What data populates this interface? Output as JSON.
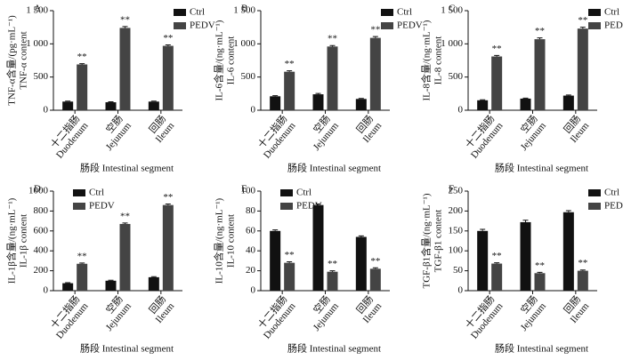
{
  "chart_data": [
    {
      "type": "bar",
      "title": "A",
      "ylabel": [
        "TNF-α含量/(pg·mL⁻¹)",
        "TNF-α content"
      ],
      "xlabel": "肠段 Intestinal segment",
      "categories": [
        [
          "十二指肠",
          "Duodenum"
        ],
        [
          "空肠",
          "Jejunum"
        ],
        [
          "回肠",
          "Ileum"
        ]
      ],
      "series": [
        {
          "name": "Ctrl",
          "color": "#111111",
          "values": [
            130,
            120,
            130
          ],
          "errors": [
            8,
            8,
            8
          ]
        },
        {
          "name": "PEDV",
          "color": "#444444",
          "values": [
            690,
            1240,
            970
          ],
          "errors": [
            12,
            20,
            15
          ],
          "significance": [
            "**",
            "**",
            "**"
          ]
        }
      ],
      "ylim": [
        0,
        1500
      ],
      "yticks": [
        0,
        500,
        {
          "value": 1000,
          "label": "1 000"
        },
        {
          "value": 1500,
          "label": "1 500"
        }
      ],
      "legend": "upper right"
    },
    {
      "type": "bar",
      "title": "B",
      "ylabel": [
        "IL-6含量/(ng·mL⁻¹)",
        "IL-6 content"
      ],
      "xlabel": "肠段 Intestinal segment",
      "categories": [
        [
          "十二指肠",
          "Duodenum"
        ],
        [
          "空肠",
          "Jejunum"
        ],
        [
          "回肠",
          "Ileum"
        ]
      ],
      "series": [
        {
          "name": "Ctrl",
          "color": "#111111",
          "values": [
            210,
            240,
            170
          ],
          "errors": [
            10,
            12,
            8
          ]
        },
        {
          "name": "PEDV",
          "color": "#444444",
          "values": [
            580,
            960,
            1090
          ],
          "errors": [
            15,
            15,
            20
          ],
          "significance": [
            "**",
            "**",
            "**"
          ]
        }
      ],
      "ylim": [
        0,
        1500
      ],
      "yticks": [
        0,
        500,
        {
          "value": 1000,
          "label": "1 000"
        },
        {
          "value": 1500,
          "label": "1 500"
        }
      ],
      "legend": "upper right"
    },
    {
      "type": "bar",
      "title": "C",
      "ylabel": [
        "IL-8含量/(ng·mL⁻¹)",
        "IL-8 content"
      ],
      "xlabel": "肠段 Intestinal segment",
      "categories": [
        [
          "十二指肠",
          "Duodenum"
        ],
        [
          "空肠",
          "Jejunum"
        ],
        [
          "回肠",
          "Ileum"
        ]
      ],
      "series": [
        {
          "name": "Ctrl",
          "color": "#111111",
          "values": [
            150,
            175,
            220
          ],
          "errors": [
            8,
            8,
            10
          ]
        },
        {
          "name": "PEDV",
          "color": "#444444",
          "values": [
            810,
            1070,
            1230
          ],
          "errors": [
            15,
            20,
            20
          ],
          "significance": [
            "**",
            "**",
            "**"
          ]
        }
      ],
      "ylim": [
        0,
        1500
      ],
      "yticks": [
        0,
        500,
        {
          "value": 1000,
          "label": "1 000"
        },
        {
          "value": 1500,
          "label": "1 500"
        }
      ],
      "legend": "upper right"
    },
    {
      "type": "bar",
      "title": "D",
      "ylabel": [
        "IL-1β含量/(ng·mL⁻¹)",
        "IL-1β content"
      ],
      "xlabel": "肠段 Intestinal segment",
      "categories": [
        [
          "十二指肠",
          "Duodenum"
        ],
        [
          "空肠",
          "Jejunum"
        ],
        [
          "回肠",
          "Ileum"
        ]
      ],
      "series": [
        {
          "name": "Ctrl",
          "color": "#111111",
          "values": [
            75,
            100,
            135
          ],
          "errors": [
            5,
            5,
            6
          ]
        },
        {
          "name": "PEDV",
          "color": "#444444",
          "values": [
            270,
            670,
            860
          ],
          "errors": [
            8,
            10,
            10
          ],
          "significance": [
            "**",
            "**",
            "**"
          ]
        }
      ],
      "ylim": [
        0,
        1000
      ],
      "yticks": [
        0,
        200,
        400,
        600,
        800,
        1000
      ],
      "legend": "upper left"
    },
    {
      "type": "bar",
      "title": "E",
      "ylabel": [
        "IL-10含量/(ng·mL⁻¹)",
        "IL-10 content"
      ],
      "xlabel": "肠段 Intestinal segment",
      "categories": [
        [
          "十二指肠",
          "Duodenum"
        ],
        [
          "空肠",
          "Jejunum"
        ],
        [
          "回肠",
          "Ileum"
        ]
      ],
      "series": [
        {
          "name": "Ctrl",
          "color": "#111111",
          "values": [
            60,
            86,
            54
          ],
          "errors": [
            1,
            1,
            1
          ]
        },
        {
          "name": "PEDV",
          "color": "#444444",
          "values": [
            28,
            19,
            22
          ],
          "errors": [
            1,
            1,
            1
          ],
          "significance": [
            "**",
            "**",
            "**"
          ]
        }
      ],
      "ylim": [
        0,
        100
      ],
      "yticks": [
        0,
        20,
        40,
        60,
        80,
        100
      ],
      "legend": "upper left"
    },
    {
      "type": "bar",
      "title": "F",
      "ylabel": [
        "TGF-β1含量/(ng·mL⁻¹)",
        "TGF-β1 content"
      ],
      "xlabel": "肠段 Intestinal segment",
      "categories": [
        [
          "十二指肠",
          "Duodenum"
        ],
        [
          "空肠",
          "Jejunum"
        ],
        [
          "回肠",
          "Ileum"
        ]
      ],
      "series": [
        {
          "name": "Ctrl",
          "color": "#111111",
          "values": [
            150,
            172,
            197
          ],
          "errors": [
            4,
            5,
            4
          ]
        },
        {
          "name": "PEDV",
          "color": "#444444",
          "values": [
            68,
            44,
            50
          ],
          "errors": [
            2,
            2,
            2
          ],
          "significance": [
            "**",
            "**",
            "**"
          ]
        }
      ],
      "ylim": [
        0,
        250
      ],
      "yticks": [
        0,
        50,
        100,
        150,
        200,
        250
      ],
      "legend": "upper right"
    }
  ]
}
